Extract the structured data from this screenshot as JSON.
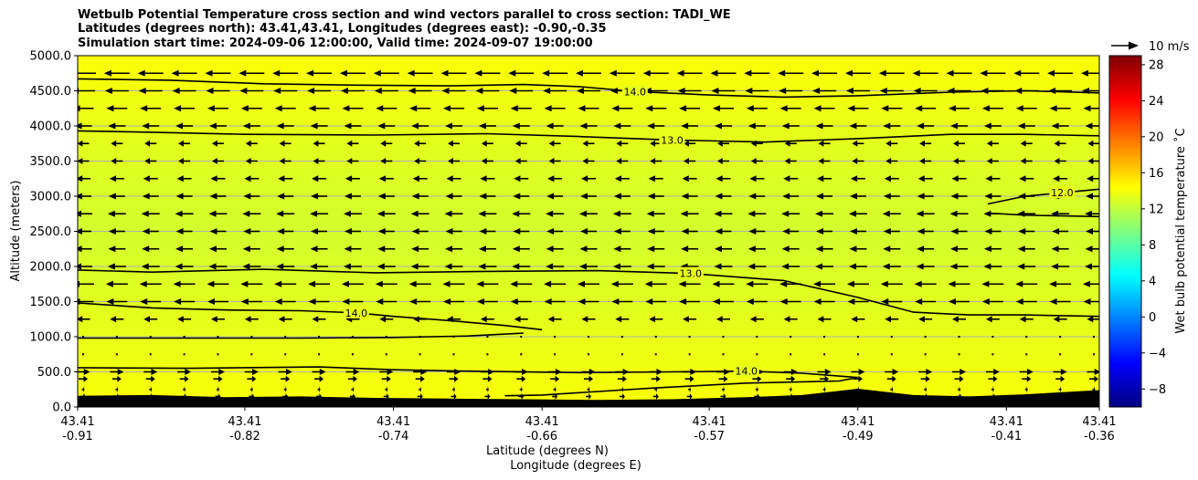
{
  "title": {
    "line1": "Wetbulb Potential Temperature cross section and wind vectors parallel to cross section: TADI_WE",
    "line2": "Latitudes (degrees north): 43.41,43.41, Longitudes (degrees east): -0.90,-0.35",
    "line3": "Simulation start time: 2024-09-06 12:00:00, Valid time: 2024-09-07 19:00:00"
  },
  "chart_data": {
    "type": "heatmap",
    "subtype": "cross-section with contours and wind vectors",
    "ylabel": "Altitude (meters)",
    "xlabel_lat": "Latitude (degrees N)",
    "xlabel_lon": "Longitude (degrees E)",
    "ylim": [
      0,
      5000
    ],
    "yticks": [
      "0.0",
      "500.0",
      "1000.0",
      "1500.0",
      "2000.0",
      "2500.0",
      "3000.0",
      "3500.0",
      "4000.0",
      "4500.0",
      "5000.0"
    ],
    "ytick_values": [
      0,
      500,
      1000,
      1500,
      2000,
      2500,
      3000,
      3500,
      4000,
      4500,
      5000
    ],
    "xlim": [
      -0.91,
      -0.36
    ],
    "xticks_lon_values": [
      -0.91,
      -0.82,
      -0.74,
      -0.66,
      -0.57,
      -0.49,
      -0.41,
      -0.36
    ],
    "xticks_lat": [
      "43.41",
      "43.41",
      "43.41",
      "43.41",
      "43.41",
      "43.41",
      "43.41",
      "43.41"
    ],
    "xticks_lon": [
      "-0.91",
      "-0.82",
      "-0.74",
      "-0.66",
      "-0.57",
      "-0.49",
      "-0.41",
      "-0.36"
    ],
    "colorbar": {
      "label": "Wet bulb potential temperature ˚C",
      "range": [
        -10,
        29
      ],
      "ticks": [
        -8,
        -4,
        0,
        4,
        8,
        12,
        16,
        20,
        24,
        28
      ],
      "tick_labels": [
        "−8",
        "−4",
        "0",
        "4",
        "8",
        "12",
        "16",
        "20",
        "24",
        "28"
      ],
      "colormap": "jet"
    },
    "wind_reference": {
      "label": "10 m/s",
      "speed": 10
    },
    "field_color_band": [
      {
        "alt": 0,
        "value": 14.2
      },
      {
        "alt": 1500,
        "value": 13.2
      },
      {
        "alt": 2500,
        "value": 12.7
      },
      {
        "alt": 3500,
        "value": 13.1
      },
      {
        "alt": 5000,
        "value": 14.3
      }
    ],
    "contours": [
      {
        "label": "14.0",
        "points": [
          [
            -0.91,
            4670
          ],
          [
            -0.86,
            4650
          ],
          [
            -0.81,
            4600
          ],
          [
            -0.76,
            4580
          ],
          [
            -0.71,
            4570
          ],
          [
            -0.67,
            4590
          ],
          [
            -0.64,
            4560
          ],
          [
            -0.61,
            4490
          ],
          [
            -0.57,
            4440
          ],
          [
            -0.53,
            4410
          ],
          [
            -0.49,
            4430
          ],
          [
            -0.44,
            4480
          ],
          [
            -0.4,
            4500
          ],
          [
            -0.36,
            4470
          ]
        ]
      },
      {
        "label": "13.0",
        "points": [
          [
            -0.91,
            3930
          ],
          [
            -0.87,
            3910
          ],
          [
            -0.82,
            3880
          ],
          [
            -0.75,
            3870
          ],
          [
            -0.69,
            3890
          ],
          [
            -0.64,
            3850
          ],
          [
            -0.59,
            3800
          ],
          [
            -0.54,
            3770
          ],
          [
            -0.49,
            3820
          ],
          [
            -0.44,
            3880
          ],
          [
            -0.4,
            3880
          ],
          [
            -0.36,
            3860
          ]
        ]
      },
      {
        "label": "12.0",
        "points": [
          [
            -0.42,
            2890
          ],
          [
            -0.4,
            3000
          ],
          [
            -0.38,
            3050
          ],
          [
            -0.36,
            3100
          ]
        ]
      },
      {
        "label": "",
        "points": [
          [
            -0.42,
            2760
          ],
          [
            -0.4,
            2730
          ],
          [
            -0.38,
            2720
          ],
          [
            -0.36,
            2710
          ]
        ]
      },
      {
        "label": "13.0",
        "points": [
          [
            -0.91,
            1950
          ],
          [
            -0.87,
            1920
          ],
          [
            -0.81,
            1960
          ],
          [
            -0.75,
            1910
          ],
          [
            -0.69,
            1930
          ],
          [
            -0.63,
            1940
          ],
          [
            -0.58,
            1900
          ],
          [
            -0.53,
            1800
          ],
          [
            -0.49,
            1560
          ],
          [
            -0.46,
            1350
          ],
          [
            -0.43,
            1310
          ],
          [
            -0.4,
            1310
          ],
          [
            -0.36,
            1290
          ]
        ]
      },
      {
        "label": "14.0",
        "points": [
          [
            -0.91,
            1480
          ],
          [
            -0.87,
            1410
          ],
          [
            -0.83,
            1380
          ],
          [
            -0.79,
            1370
          ],
          [
            -0.76,
            1340
          ],
          [
            -0.74,
            1290
          ],
          [
            -0.71,
            1230
          ],
          [
            -0.68,
            1160
          ],
          [
            -0.66,
            1100
          ]
        ]
      },
      {
        "label": "",
        "points": [
          [
            -0.91,
            980
          ],
          [
            -0.85,
            980
          ],
          [
            -0.79,
            980
          ],
          [
            -0.74,
            990
          ],
          [
            -0.7,
            1010
          ],
          [
            -0.67,
            1050
          ]
        ]
      },
      {
        "label": "14.0",
        "points": [
          [
            -0.91,
            560
          ],
          [
            -0.85,
            550
          ],
          [
            -0.78,
            570
          ],
          [
            -0.74,
            530
          ],
          [
            -0.7,
            510
          ],
          [
            -0.64,
            490
          ],
          [
            -0.59,
            500
          ],
          [
            -0.55,
            510
          ],
          [
            -0.52,
            480
          ],
          [
            -0.49,
            420
          ],
          [
            -0.5,
            370
          ],
          [
            -0.55,
            340
          ],
          [
            -0.6,
            270
          ],
          [
            -0.66,
            170
          ],
          [
            -0.68,
            160
          ]
        ]
      }
    ],
    "terrain": [
      [
        -0.91,
        160
      ],
      [
        -0.87,
        170
      ],
      [
        -0.83,
        140
      ],
      [
        -0.79,
        150
      ],
      [
        -0.75,
        130
      ],
      [
        -0.71,
        120
      ],
      [
        -0.67,
        110
      ],
      [
        -0.63,
        100
      ],
      [
        -0.59,
        110
      ],
      [
        -0.55,
        140
      ],
      [
        -0.52,
        170
      ],
      [
        -0.49,
        260
      ],
      [
        -0.46,
        170
      ],
      [
        -0.43,
        150
      ],
      [
        -0.4,
        180
      ],
      [
        -0.36,
        240
      ]
    ],
    "wind_rows": [
      {
        "alt": 150,
        "u": 0.6
      },
      {
        "alt": 250,
        "u": 0.3
      },
      {
        "alt": 400,
        "u": 1.0
      },
      {
        "alt": 500,
        "u": 1.5
      },
      {
        "alt": 750,
        "u": 0.2
      },
      {
        "alt": 1000,
        "u": 0.0
      },
      {
        "alt": 1250,
        "u": -1.5
      },
      {
        "alt": 1500,
        "u": -2.3
      },
      {
        "alt": 1750,
        "u": -2.4
      },
      {
        "alt": 2000,
        "u": -2.0
      },
      {
        "alt": 2250,
        "u": -1.9
      },
      {
        "alt": 2500,
        "u": -1.8
      },
      {
        "alt": 2750,
        "u": -2.0
      },
      {
        "alt": 3000,
        "u": -1.8
      },
      {
        "alt": 3250,
        "u": -1.6
      },
      {
        "alt": 3500,
        "u": -1.3
      },
      {
        "alt": 3750,
        "u": -1.3
      },
      {
        "alt": 4000,
        "u": -1.9
      },
      {
        "alt": 4250,
        "u": -2.3
      },
      {
        "alt": 4500,
        "u": -2.6
      },
      {
        "alt": 4750,
        "u": -2.8
      }
    ]
  }
}
